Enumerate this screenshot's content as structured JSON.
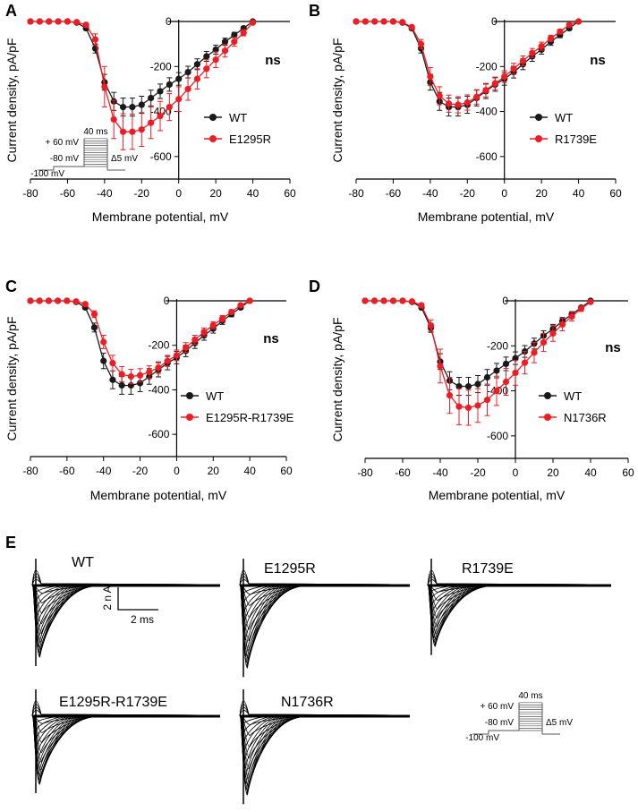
{
  "colors": {
    "wt": "#1a1a1a",
    "mutant": "#ee1c24",
    "axis": "#000000",
    "protocol": "#555555"
  },
  "chart_data": [
    {
      "panel_label": "A",
      "type": "line",
      "xlabel": "Membrane potential, mV",
      "ylabel": "Current density, pA/pF",
      "xlim": [
        -80,
        60
      ],
      "ylim": [
        -700,
        0
      ],
      "xticks": [
        "-80",
        "-60",
        "-40",
        "-20",
        "0",
        "20",
        "40",
        "60"
      ],
      "yticks": [
        "0",
        "-200",
        "-400",
        "-600"
      ],
      "annotation": "ns",
      "show_protocol": true,
      "series": [
        {
          "name": "WT",
          "color": "#1a1a1a",
          "x": [
            -80,
            -75,
            -70,
            -65,
            -60,
            -55,
            -50,
            -45,
            -40,
            -35,
            -30,
            -25,
            -20,
            -15,
            -10,
            -5,
            0,
            5,
            10,
            15,
            20,
            25,
            30,
            35,
            40
          ],
          "y": [
            0,
            0,
            0,
            0,
            0,
            -5,
            -30,
            -120,
            -270,
            -355,
            -380,
            -380,
            -370,
            -340,
            -310,
            -280,
            -255,
            -225,
            -190,
            -155,
            -125,
            -90,
            -60,
            -30,
            0
          ],
          "err": [
            0,
            0,
            0,
            0,
            0,
            3,
            8,
            20,
            35,
            40,
            40,
            40,
            38,
            35,
            32,
            30,
            28,
            26,
            24,
            22,
            20,
            16,
            12,
            8,
            3
          ]
        },
        {
          "name": "E1295R",
          "color": "#ee1c24",
          "x": [
            -80,
            -75,
            -70,
            -65,
            -60,
            -55,
            -50,
            -45,
            -40,
            -35,
            -30,
            -25,
            -20,
            -15,
            -10,
            -5,
            0,
            5,
            10,
            15,
            20,
            25,
            30,
            35,
            40
          ],
          "y": [
            0,
            0,
            0,
            0,
            0,
            -3,
            -15,
            -80,
            -290,
            -435,
            -490,
            -490,
            -480,
            -450,
            -420,
            -380,
            -345,
            -300,
            -255,
            -210,
            -170,
            -130,
            -90,
            -50,
            -5
          ],
          "err": [
            0,
            0,
            0,
            0,
            0,
            3,
            6,
            25,
            90,
            85,
            80,
            78,
            75,
            70,
            65,
            60,
            55,
            50,
            45,
            40,
            35,
            28,
            20,
            14,
            5
          ]
        }
      ]
    },
    {
      "panel_label": "B",
      "type": "line",
      "xlabel": "Membrane potential, mV",
      "ylabel": "Current density, pA/pF",
      "xlim": [
        -80,
        60
      ],
      "ylim": [
        -700,
        0
      ],
      "xticks": [
        "-80",
        "-60",
        "-40",
        "-20",
        "0",
        "20",
        "40",
        "60"
      ],
      "yticks": [
        "0",
        "-200",
        "-400",
        "-600"
      ],
      "annotation": "ns",
      "show_protocol": false,
      "series": [
        {
          "name": "WT",
          "color": "#1a1a1a",
          "x": [
            -80,
            -75,
            -70,
            -65,
            -60,
            -55,
            -50,
            -45,
            -40,
            -35,
            -30,
            -25,
            -20,
            -15,
            -10,
            -5,
            0,
            5,
            10,
            15,
            20,
            25,
            30,
            35,
            40
          ],
          "y": [
            0,
            0,
            0,
            0,
            0,
            -5,
            -30,
            -120,
            -270,
            -355,
            -380,
            -380,
            -370,
            -340,
            -310,
            -280,
            -255,
            -225,
            -190,
            -155,
            -125,
            -90,
            -60,
            -30,
            0
          ],
          "err": [
            0,
            0,
            0,
            0,
            0,
            3,
            8,
            20,
            35,
            40,
            40,
            40,
            38,
            35,
            32,
            30,
            28,
            26,
            24,
            22,
            20,
            16,
            12,
            8,
            3
          ]
        },
        {
          "name": "R1739E",
          "color": "#ee1c24",
          "x": [
            -80,
            -75,
            -70,
            -65,
            -60,
            -55,
            -50,
            -45,
            -40,
            -35,
            -30,
            -25,
            -20,
            -15,
            -10,
            -5,
            0,
            5,
            10,
            15,
            20,
            25,
            30,
            35,
            40
          ],
          "y": [
            0,
            0,
            0,
            0,
            0,
            -3,
            -25,
            -100,
            -245,
            -330,
            -365,
            -370,
            -360,
            -335,
            -305,
            -275,
            -245,
            -210,
            -175,
            -140,
            -110,
            -75,
            -45,
            -15,
            0
          ],
          "err": [
            0,
            0,
            0,
            0,
            0,
            3,
            8,
            20,
            40,
            40,
            38,
            36,
            34,
            32,
            30,
            28,
            26,
            24,
            22,
            20,
            18,
            14,
            10,
            6,
            3
          ]
        }
      ]
    },
    {
      "panel_label": "C",
      "type": "line",
      "xlabel": "Membrane potential, mV",
      "ylabel": "Current density, pA/pF",
      "xlim": [
        -80,
        60
      ],
      "ylim": [
        -700,
        0
      ],
      "xticks": [
        "-80",
        "-60",
        "-40",
        "-20",
        "0",
        "20",
        "40",
        "60"
      ],
      "yticks": [
        "0",
        "-200",
        "-400",
        "-600"
      ],
      "annotation": "ns",
      "show_protocol": false,
      "series": [
        {
          "name": "WT",
          "color": "#1a1a1a",
          "x": [
            -80,
            -75,
            -70,
            -65,
            -60,
            -55,
            -50,
            -45,
            -40,
            -35,
            -30,
            -25,
            -20,
            -15,
            -10,
            -5,
            0,
            5,
            10,
            15,
            20,
            25,
            30,
            35,
            40
          ],
          "y": [
            0,
            0,
            0,
            0,
            0,
            -5,
            -30,
            -120,
            -270,
            -355,
            -380,
            -380,
            -370,
            -340,
            -310,
            -280,
            -255,
            -225,
            -190,
            -155,
            -125,
            -90,
            -60,
            -30,
            0
          ],
          "err": [
            0,
            0,
            0,
            0,
            0,
            3,
            8,
            20,
            35,
            40,
            40,
            40,
            38,
            35,
            32,
            30,
            28,
            26,
            24,
            22,
            20,
            16,
            12,
            8,
            3
          ]
        },
        {
          "name": "E1295R-R1739E",
          "color": "#ee1c24",
          "x": [
            -80,
            -75,
            -70,
            -65,
            -60,
            -55,
            -50,
            -45,
            -40,
            -35,
            -30,
            -25,
            -20,
            -15,
            -10,
            -5,
            0,
            5,
            10,
            15,
            20,
            25,
            30,
            35,
            40
          ],
          "y": [
            0,
            0,
            0,
            0,
            0,
            -3,
            -15,
            -60,
            -185,
            -280,
            -330,
            -340,
            -335,
            -320,
            -300,
            -270,
            -245,
            -210,
            -175,
            -140,
            -110,
            -80,
            -50,
            -20,
            0
          ],
          "err": [
            0,
            0,
            0,
            0,
            0,
            3,
            6,
            15,
            30,
            35,
            34,
            32,
            30,
            28,
            26,
            25,
            24,
            22,
            20,
            18,
            16,
            14,
            10,
            6,
            3
          ]
        }
      ]
    },
    {
      "panel_label": "D",
      "type": "line",
      "xlabel": "Membrane potential, mV",
      "ylabel": "Current density, pA/pF",
      "xlim": [
        -80,
        60
      ],
      "ylim": [
        -700,
        0
      ],
      "xticks": [
        "-80",
        "-60",
        "-40",
        "-20",
        "0",
        "20",
        "40",
        "60"
      ],
      "yticks": [
        "0",
        "-200",
        "-400",
        "-600"
      ],
      "annotation": "ns",
      "show_protocol": false,
      "series": [
        {
          "name": "WT",
          "color": "#1a1a1a",
          "x": [
            -80,
            -75,
            -70,
            -65,
            -60,
            -55,
            -50,
            -45,
            -40,
            -35,
            -30,
            -25,
            -20,
            -15,
            -10,
            -5,
            0,
            5,
            10,
            15,
            20,
            25,
            30,
            35,
            40
          ],
          "y": [
            0,
            0,
            0,
            0,
            0,
            -5,
            -30,
            -120,
            -270,
            -355,
            -380,
            -380,
            -370,
            -340,
            -310,
            -280,
            -255,
            -225,
            -190,
            -155,
            -125,
            -90,
            -60,
            -30,
            0
          ],
          "err": [
            0,
            0,
            0,
            0,
            0,
            3,
            8,
            20,
            35,
            40,
            40,
            40,
            38,
            35,
            32,
            30,
            28,
            26,
            24,
            22,
            20,
            16,
            12,
            8,
            3
          ]
        },
        {
          "name": "N1736R",
          "color": "#ee1c24",
          "x": [
            -80,
            -75,
            -70,
            -65,
            -60,
            -55,
            -50,
            -45,
            -40,
            -35,
            -30,
            -25,
            -20,
            -15,
            -10,
            -5,
            0,
            5,
            10,
            15,
            20,
            25,
            30,
            35,
            40
          ],
          "y": [
            0,
            0,
            0,
            0,
            0,
            -3,
            -20,
            -110,
            -290,
            -420,
            -470,
            -475,
            -465,
            -440,
            -400,
            -360,
            -320,
            -275,
            -230,
            -185,
            -145,
            -105,
            -70,
            -35,
            -5
          ],
          "err": [
            0,
            0,
            0,
            0,
            0,
            3,
            8,
            25,
            75,
            80,
            80,
            78,
            75,
            70,
            65,
            60,
            55,
            50,
            45,
            40,
            35,
            28,
            20,
            12,
            5
          ]
        }
      ]
    }
  ],
  "protocol": {
    "top": "+ 60 mV",
    "hold": "-80 mV",
    "base": "-100 mV",
    "duration": "40 ms",
    "step": "Δ5 mV"
  },
  "panel_e": {
    "label": "E",
    "traces": [
      {
        "name": "WT",
        "peak": 1.0
      },
      {
        "name": "E1295R",
        "peak": 1.15
      },
      {
        "name": "R1739E",
        "peak": 0.85
      },
      {
        "name": "E1295R-R1739E",
        "peak": 0.95
      },
      {
        "name": "N1736R",
        "peak": 1.1
      }
    ],
    "scale_current": "2 n A",
    "scale_time": "2 ms"
  }
}
